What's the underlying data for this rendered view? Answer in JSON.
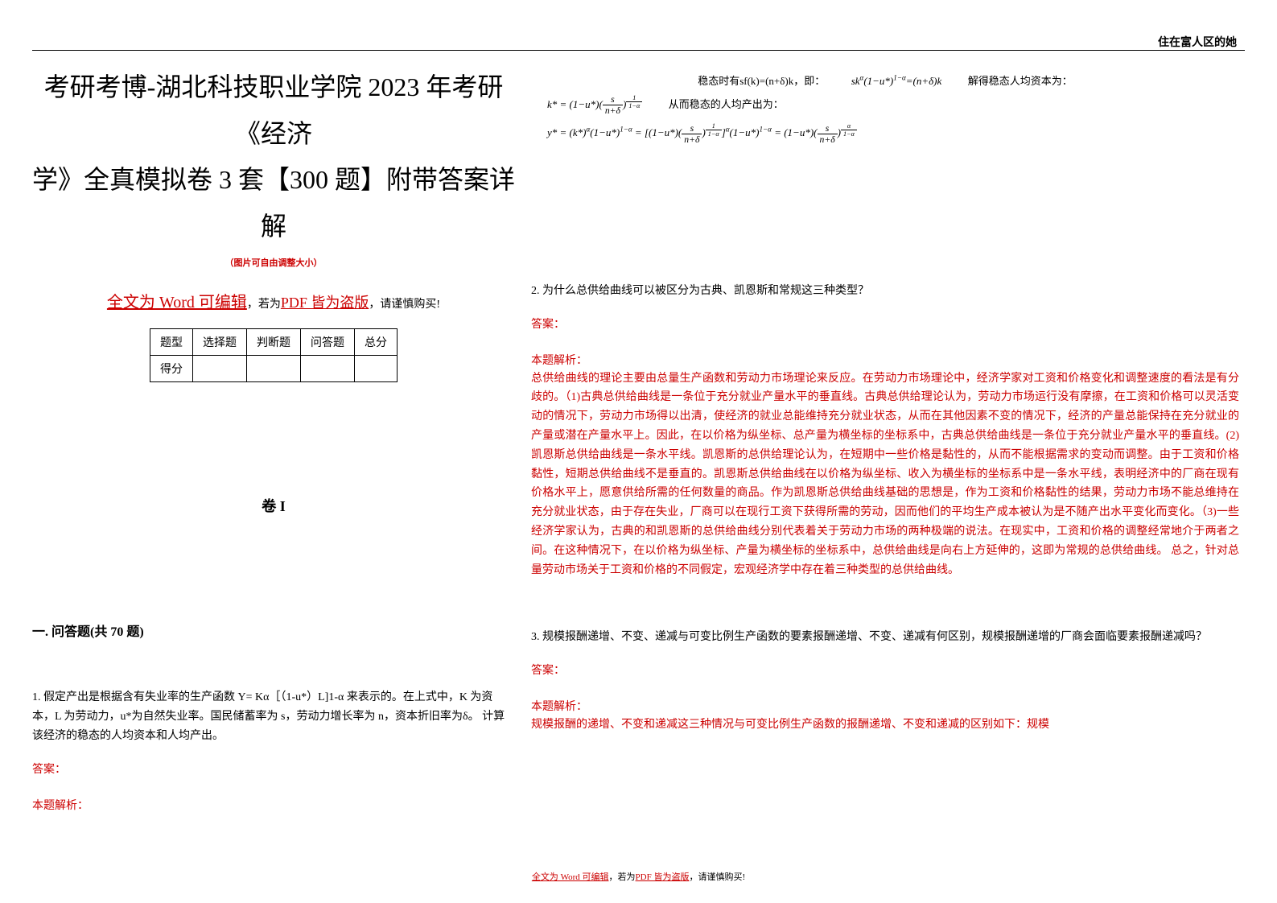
{
  "header": {
    "watermark": "住在富人区的她"
  },
  "title": {
    "line1": "考研考博-湖北科技职业学院 2023 年考研《经济",
    "line2": "学》全真模拟卷 3 套【300 题】附带答案详解"
  },
  "subtitle": "（图片可自由调整大小）",
  "editableNote": {
    "part1": "全文为 Word 可编辑",
    "part2": "，若为",
    "part3": "PDF 皆为盗版",
    "part4": "，请谨慎购买!"
  },
  "scoreTable": {
    "headers": [
      "题型",
      "选择题",
      "判断题",
      "问答题",
      "总分"
    ],
    "rowLabel": "得分"
  },
  "volume": "卷 I",
  "sectionTitle": "一. 问答题(共 70 题)",
  "q1": {
    "text": "1. 假定产出是根据含有失业率的生产函数 Y= Kα［（1-u*）L]1-α 来表示的。在上式中，K 为资本，L 为劳动力，u*为自然失业率。国民储蓄率为 s，劳动力增长率为 n，资本折旧率为δ。 计算该经济的稳态的人均资本和人均产出。",
    "answerLabel": "答案：",
    "analysisLabel": "本题解析："
  },
  "mathBlock": {
    "line1_prefix": "稳态时有sf(k)=(n+δ)k，即：",
    "line1_formula": "sk<sup>α</sup>(1−u*)<sup>1−α</sup>=(n+δ)k",
    "line1_suffix": "解得稳态人均资本为：",
    "line2_formula": "k* = (1−u*)(<span class='frac'><span class='num'>s</span><span class='den'>n+δ</span></span>)<sup><span class='frac'><span class='num'>1</span><span class='den'>1−α</span></span></sup>",
    "line2_suffix": "从而稳态的人均产出为：",
    "line3_formula": "y* = (k*)<sup>α</sup>(1−u*)<sup>1−α</sup> = [(1−u*)(<span class='frac'><span class='num'>s</span><span class='den'>n+δ</span></span>)<sup><span class='frac'><span class='num'>1</span><span class='den'>1−α</span></span></sup>]<sup>α</sup>(1−u*)<sup>1−α</sup> = (1−u*)(<span class='frac'><span class='num'>s</span><span class='den'>n+δ</span></span>)<sup><span class='frac'><span class='num'>α</span><span class='den'>1−α</span></span></sup>"
  },
  "q2": {
    "text": "2. 为什么总供给曲线可以被区分为古典、凯恩斯和常规这三种类型？",
    "answerLabel": "答案：",
    "analysisLabel": "本题解析：",
    "analysisText": "总供给曲线的理论主要由总量生产函数和劳动力市场理论来反应。在劳动力市场理论中，经济学家对工资和价格变化和调整速度的看法是有分歧的。（1)古典总供给曲线是一条位于充分就业产量水平的垂直线。古典总供给理论认为，劳动力市场运行没有摩擦，在工资和价格可以灵活变动的情况下，劳动力市场得以出清，使经济的就业总能维持充分就业状态，从而在其他因素不变的情况下，经济的产量总能保持在充分就业的产量或潜在产量水平上。因此，在以价格为纵坐标、总产量为横坐标的坐标系中，古典总供给曲线是一条位于充分就业产量水平的垂直线。(2)凯恩斯总供给曲线是一条水平线。凯恩斯的总供给理论认为，在短期中一些价格是黏性的，从而不能根据需求的变动而调整。由于工资和价格黏性，短期总供给曲线不是垂直的。凯恩斯总供给曲线在以价格为纵坐标、收入为横坐标的坐标系中是一条水平线，表明经济中的厂商在现有价格水平上，愿意供给所需的任何数量的商品。作为凯恩斯总供给曲线基础的思想是，作为工资和价格黏性的结果，劳动力市场不能总维持在充分就业状态，由于存在失业，厂商可以在现行工资下获得所需的劳动，因而他们的平均生产成本被认为是不随产出水平变化而变化。（3)一些经济学家认为，古典的和凯恩斯的总供给曲线分别代表着关于劳动力市场的两种极端的说法。在现实中，工资和价格的调整经常地介于两者之间。在这种情况下，在以价格为纵坐标、产量为横坐标的坐标系中，总供给曲线是向右上方延伸的，这即为常规的总供给曲线。 总之，针对总量劳动市场关于工资和价格的不同假定，宏观经济学中存在着三种类型的总供给曲线。"
  },
  "q3": {
    "text": "3. 规模报酬递增、不变、递减与可变比例生产函数的要素报酬递增、不变、递减有何区别，规模报酬递增的厂商会面临要素报酬递减吗？",
    "answerLabel": "答案：",
    "analysisLabel": "本题解析：",
    "analysisText": "规模报酬的递增、不变和递减这三种情况与可变比例生产函数的报酬递增、不变和递减的区别如下：规模"
  },
  "footer": {
    "part1": "全文为 Word 可编辑",
    "part2": "，若为",
    "part3": "PDF 皆为盗版",
    "part4": "，请谨慎购买!"
  },
  "colors": {
    "red": "#cc0000",
    "black": "#000000",
    "background": "#ffffff"
  },
  "typography": {
    "titleFontSize": 32,
    "bodyFontSize": 14,
    "smallFontSize": 11
  }
}
